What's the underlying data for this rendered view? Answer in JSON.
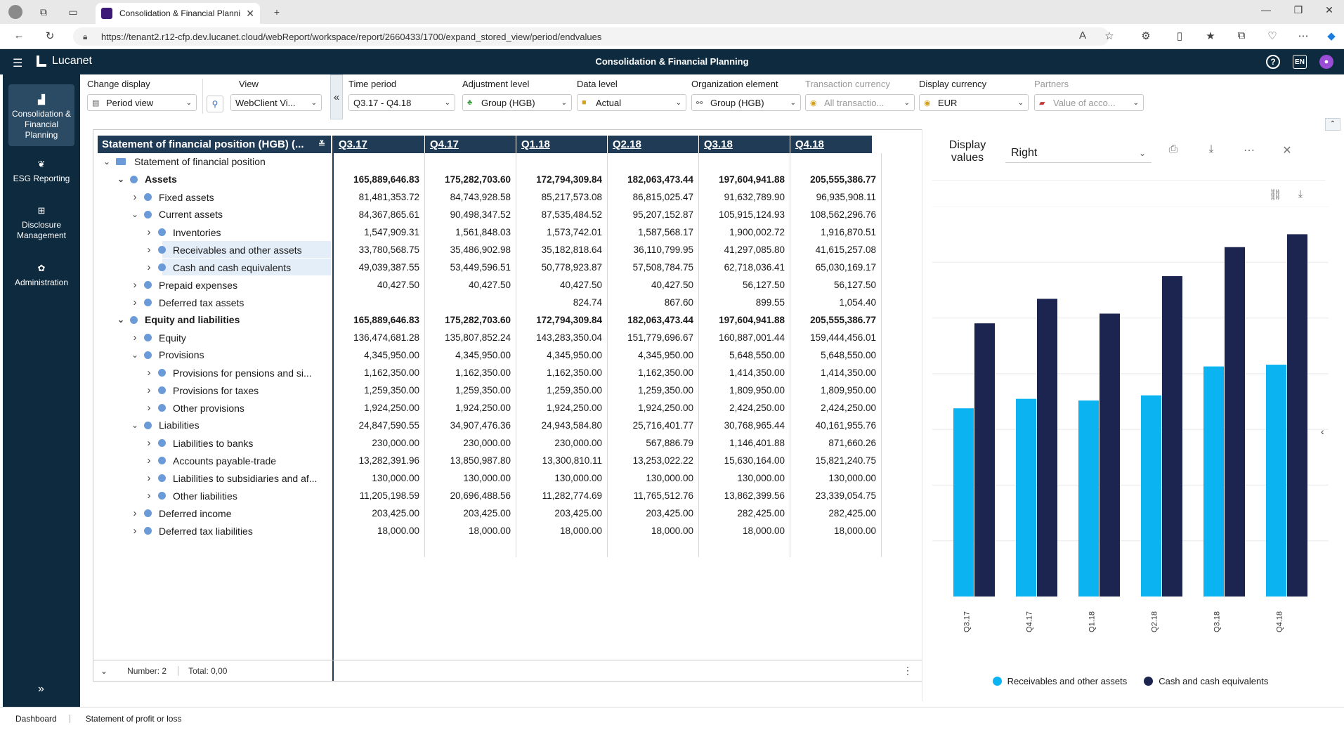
{
  "browser": {
    "tab_title": "Consolidation & Financial Planni",
    "url": "https://tenant2.r12-cfp.dev.lucanet.cloud/webReport/workspace/report/2660433/1700/expand_stored_view/period/endvalues"
  },
  "app": {
    "logo": "Lucanet",
    "title": "Consolidation & Financial Planning",
    "lang": "EN"
  },
  "nav": [
    {
      "label": "Consolidation & Financial Planning",
      "icon": "bar-chart-icon",
      "active": true
    },
    {
      "label": "ESG Reporting",
      "icon": "leaf-icon",
      "active": false
    },
    {
      "label": "Disclosure Management",
      "icon": "document-icon",
      "active": false
    },
    {
      "label": "Administration",
      "icon": "gear-icon",
      "active": false
    }
  ],
  "toolbar": {
    "change_display": {
      "label": "Change display",
      "value": "Period view"
    },
    "view": {
      "label": "View",
      "value": "WebClient Vi..."
    },
    "time_period": {
      "label": "Time period",
      "value": "Q3.17 - Q4.18"
    },
    "adjustment_level": {
      "label": "Adjustment level",
      "value": "Group (HGB)"
    },
    "data_level": {
      "label": "Data level",
      "value": "Actual"
    },
    "organization_element": {
      "label": "Organization element",
      "value": "Group (HGB)"
    },
    "transaction_currency": {
      "label": "Transaction currency",
      "value": "All transactio..."
    },
    "display_currency": {
      "label": "Display currency",
      "value": "EUR"
    },
    "partners": {
      "label": "Partners",
      "value": "Value of acco..."
    }
  },
  "report": {
    "title": "Statement of financial position (HGB) (...",
    "periods": [
      "Q3.17",
      "Q4.17",
      "Q1.18",
      "Q2.18",
      "Q3.18",
      "Q4.18"
    ],
    "rows": [
      {
        "label": "Statement of financial position",
        "level": 0,
        "type": "folder",
        "expanded": true,
        "values": [
          "",
          "",
          "",
          "",
          "",
          ""
        ]
      },
      {
        "label": "Assets",
        "level": 1,
        "bold": true,
        "expanded": true,
        "values": [
          "165,889,646.83",
          "175,282,703.60",
          "172,794,309.84",
          "182,063,473.44",
          "197,604,941.88",
          "205,555,386.77"
        ]
      },
      {
        "label": "Fixed assets",
        "level": 2,
        "expanded": false,
        "values": [
          "81,481,353.72",
          "84,743,928.58",
          "85,217,573.08",
          "86,815,025.47",
          "91,632,789.90",
          "96,935,908.11"
        ]
      },
      {
        "label": "Current assets",
        "level": 2,
        "expanded": true,
        "values": [
          "84,367,865.61",
          "90,498,347.52",
          "87,535,484.52",
          "95,207,152.87",
          "105,915,124.93",
          "108,562,296.76"
        ]
      },
      {
        "label": "Inventories",
        "level": 3,
        "expanded": false,
        "values": [
          "1,547,909.31",
          "1,561,848.03",
          "1,573,742.01",
          "1,587,568.17",
          "1,900,002.72",
          "1,916,870.51"
        ]
      },
      {
        "label": "Receivables and other assets",
        "level": 3,
        "expanded": false,
        "highlight": true,
        "values": [
          "33,780,568.75",
          "35,486,902.98",
          "35,182,818.64",
          "36,110,799.95",
          "41,297,085.80",
          "41,615,257.08"
        ]
      },
      {
        "label": "Cash and cash equivalents",
        "level": 3,
        "expanded": false,
        "highlight": true,
        "values": [
          "49,039,387.55",
          "53,449,596.51",
          "50,778,923.87",
          "57,508,784.75",
          "62,718,036.41",
          "65,030,169.17"
        ]
      },
      {
        "label": "Prepaid expenses",
        "level": 2,
        "expanded": false,
        "values": [
          "40,427.50",
          "40,427.50",
          "40,427.50",
          "40,427.50",
          "56,127.50",
          "56,127.50"
        ]
      },
      {
        "label": "Deferred tax assets",
        "level": 2,
        "expanded": false,
        "values": [
          "",
          "",
          "824.74",
          "867.60",
          "899.55",
          "1,054.40"
        ]
      },
      {
        "label": "Equity and liabilities",
        "level": 1,
        "bold": true,
        "expanded": true,
        "values": [
          "165,889,646.83",
          "175,282,703.60",
          "172,794,309.84",
          "182,063,473.44",
          "197,604,941.88",
          "205,555,386.77"
        ]
      },
      {
        "label": "Equity",
        "level": 2,
        "expanded": false,
        "values": [
          "136,474,681.28",
          "135,807,852.24",
          "143,283,350.04",
          "151,779,696.67",
          "160,887,001.44",
          "159,444,456.01"
        ]
      },
      {
        "label": "Provisions",
        "level": 2,
        "expanded": true,
        "values": [
          "4,345,950.00",
          "4,345,950.00",
          "4,345,950.00",
          "4,345,950.00",
          "5,648,550.00",
          "5,648,550.00"
        ]
      },
      {
        "label": "Provisions for pensions and si...",
        "level": 3,
        "expanded": false,
        "values": [
          "1,162,350.00",
          "1,162,350.00",
          "1,162,350.00",
          "1,162,350.00",
          "1,414,350.00",
          "1,414,350.00"
        ]
      },
      {
        "label": "Provisions for taxes",
        "level": 3,
        "expanded": false,
        "values": [
          "1,259,350.00",
          "1,259,350.00",
          "1,259,350.00",
          "1,259,350.00",
          "1,809,950.00",
          "1,809,950.00"
        ]
      },
      {
        "label": "Other provisions",
        "level": 3,
        "expanded": false,
        "values": [
          "1,924,250.00",
          "1,924,250.00",
          "1,924,250.00",
          "1,924,250.00",
          "2,424,250.00",
          "2,424,250.00"
        ]
      },
      {
        "label": "Liabilities",
        "level": 2,
        "expanded": true,
        "values": [
          "24,847,590.55",
          "34,907,476.36",
          "24,943,584.80",
          "25,716,401.77",
          "30,768,965.44",
          "40,161,955.76"
        ]
      },
      {
        "label": "Liabilities to banks",
        "level": 3,
        "expanded": false,
        "values": [
          "230,000.00",
          "230,000.00",
          "230,000.00",
          "567,886.79",
          "1,146,401.88",
          "871,660.26"
        ]
      },
      {
        "label": "Accounts payable-trade",
        "level": 3,
        "expanded": false,
        "values": [
          "13,282,391.96",
          "13,850,987.80",
          "13,300,810.11",
          "13,253,022.22",
          "15,630,164.00",
          "15,821,240.75"
        ]
      },
      {
        "label": "Liabilities to subsidiaries and af...",
        "level": 3,
        "expanded": false,
        "values": [
          "130,000.00",
          "130,000.00",
          "130,000.00",
          "130,000.00",
          "130,000.00",
          "130,000.00"
        ]
      },
      {
        "label": "Other liabilities",
        "level": 3,
        "expanded": false,
        "values": [
          "11,205,198.59",
          "20,696,488.56",
          "11,282,774.69",
          "11,765,512.76",
          "13,862,399.56",
          "23,339,054.75"
        ]
      },
      {
        "label": "Deferred income",
        "level": 2,
        "expanded": false,
        "values": [
          "203,425.00",
          "203,425.00",
          "203,425.00",
          "203,425.00",
          "282,425.00",
          "282,425.00"
        ]
      },
      {
        "label": "Deferred tax liabilities",
        "level": 2,
        "expanded": false,
        "values": [
          "18,000.00",
          "18,000.00",
          "18,000.00",
          "18,000.00",
          "18,000.00",
          "18,000.00"
        ]
      }
    ],
    "footer": {
      "number": "Number: 2",
      "total": "Total: 0,00"
    }
  },
  "chart_panel": {
    "display_values_label": "Display values",
    "display_values_value": "Right"
  },
  "chart_data": {
    "type": "bar",
    "categories": [
      "Q3.17",
      "Q4.17",
      "Q1.18",
      "Q2.18",
      "Q3.18",
      "Q4.18"
    ],
    "series": [
      {
        "name": "Receivables and other assets",
        "color": "#0bb4f0",
        "values": [
          33780568.75,
          35486902.98,
          35182818.64,
          36110799.95,
          41297085.8,
          41615257.08
        ]
      },
      {
        "name": "Cash and cash equivalents",
        "color": "#1b2550",
        "values": [
          49039387.55,
          53449596.51,
          50778923.87,
          57508784.75,
          62718036.41,
          65030169.17
        ]
      }
    ],
    "ylim": [
      0,
      70000000
    ],
    "grid": true,
    "legend": "bottom"
  },
  "bottom_tabs": [
    "Dashboard",
    "Statement of profit or loss"
  ]
}
